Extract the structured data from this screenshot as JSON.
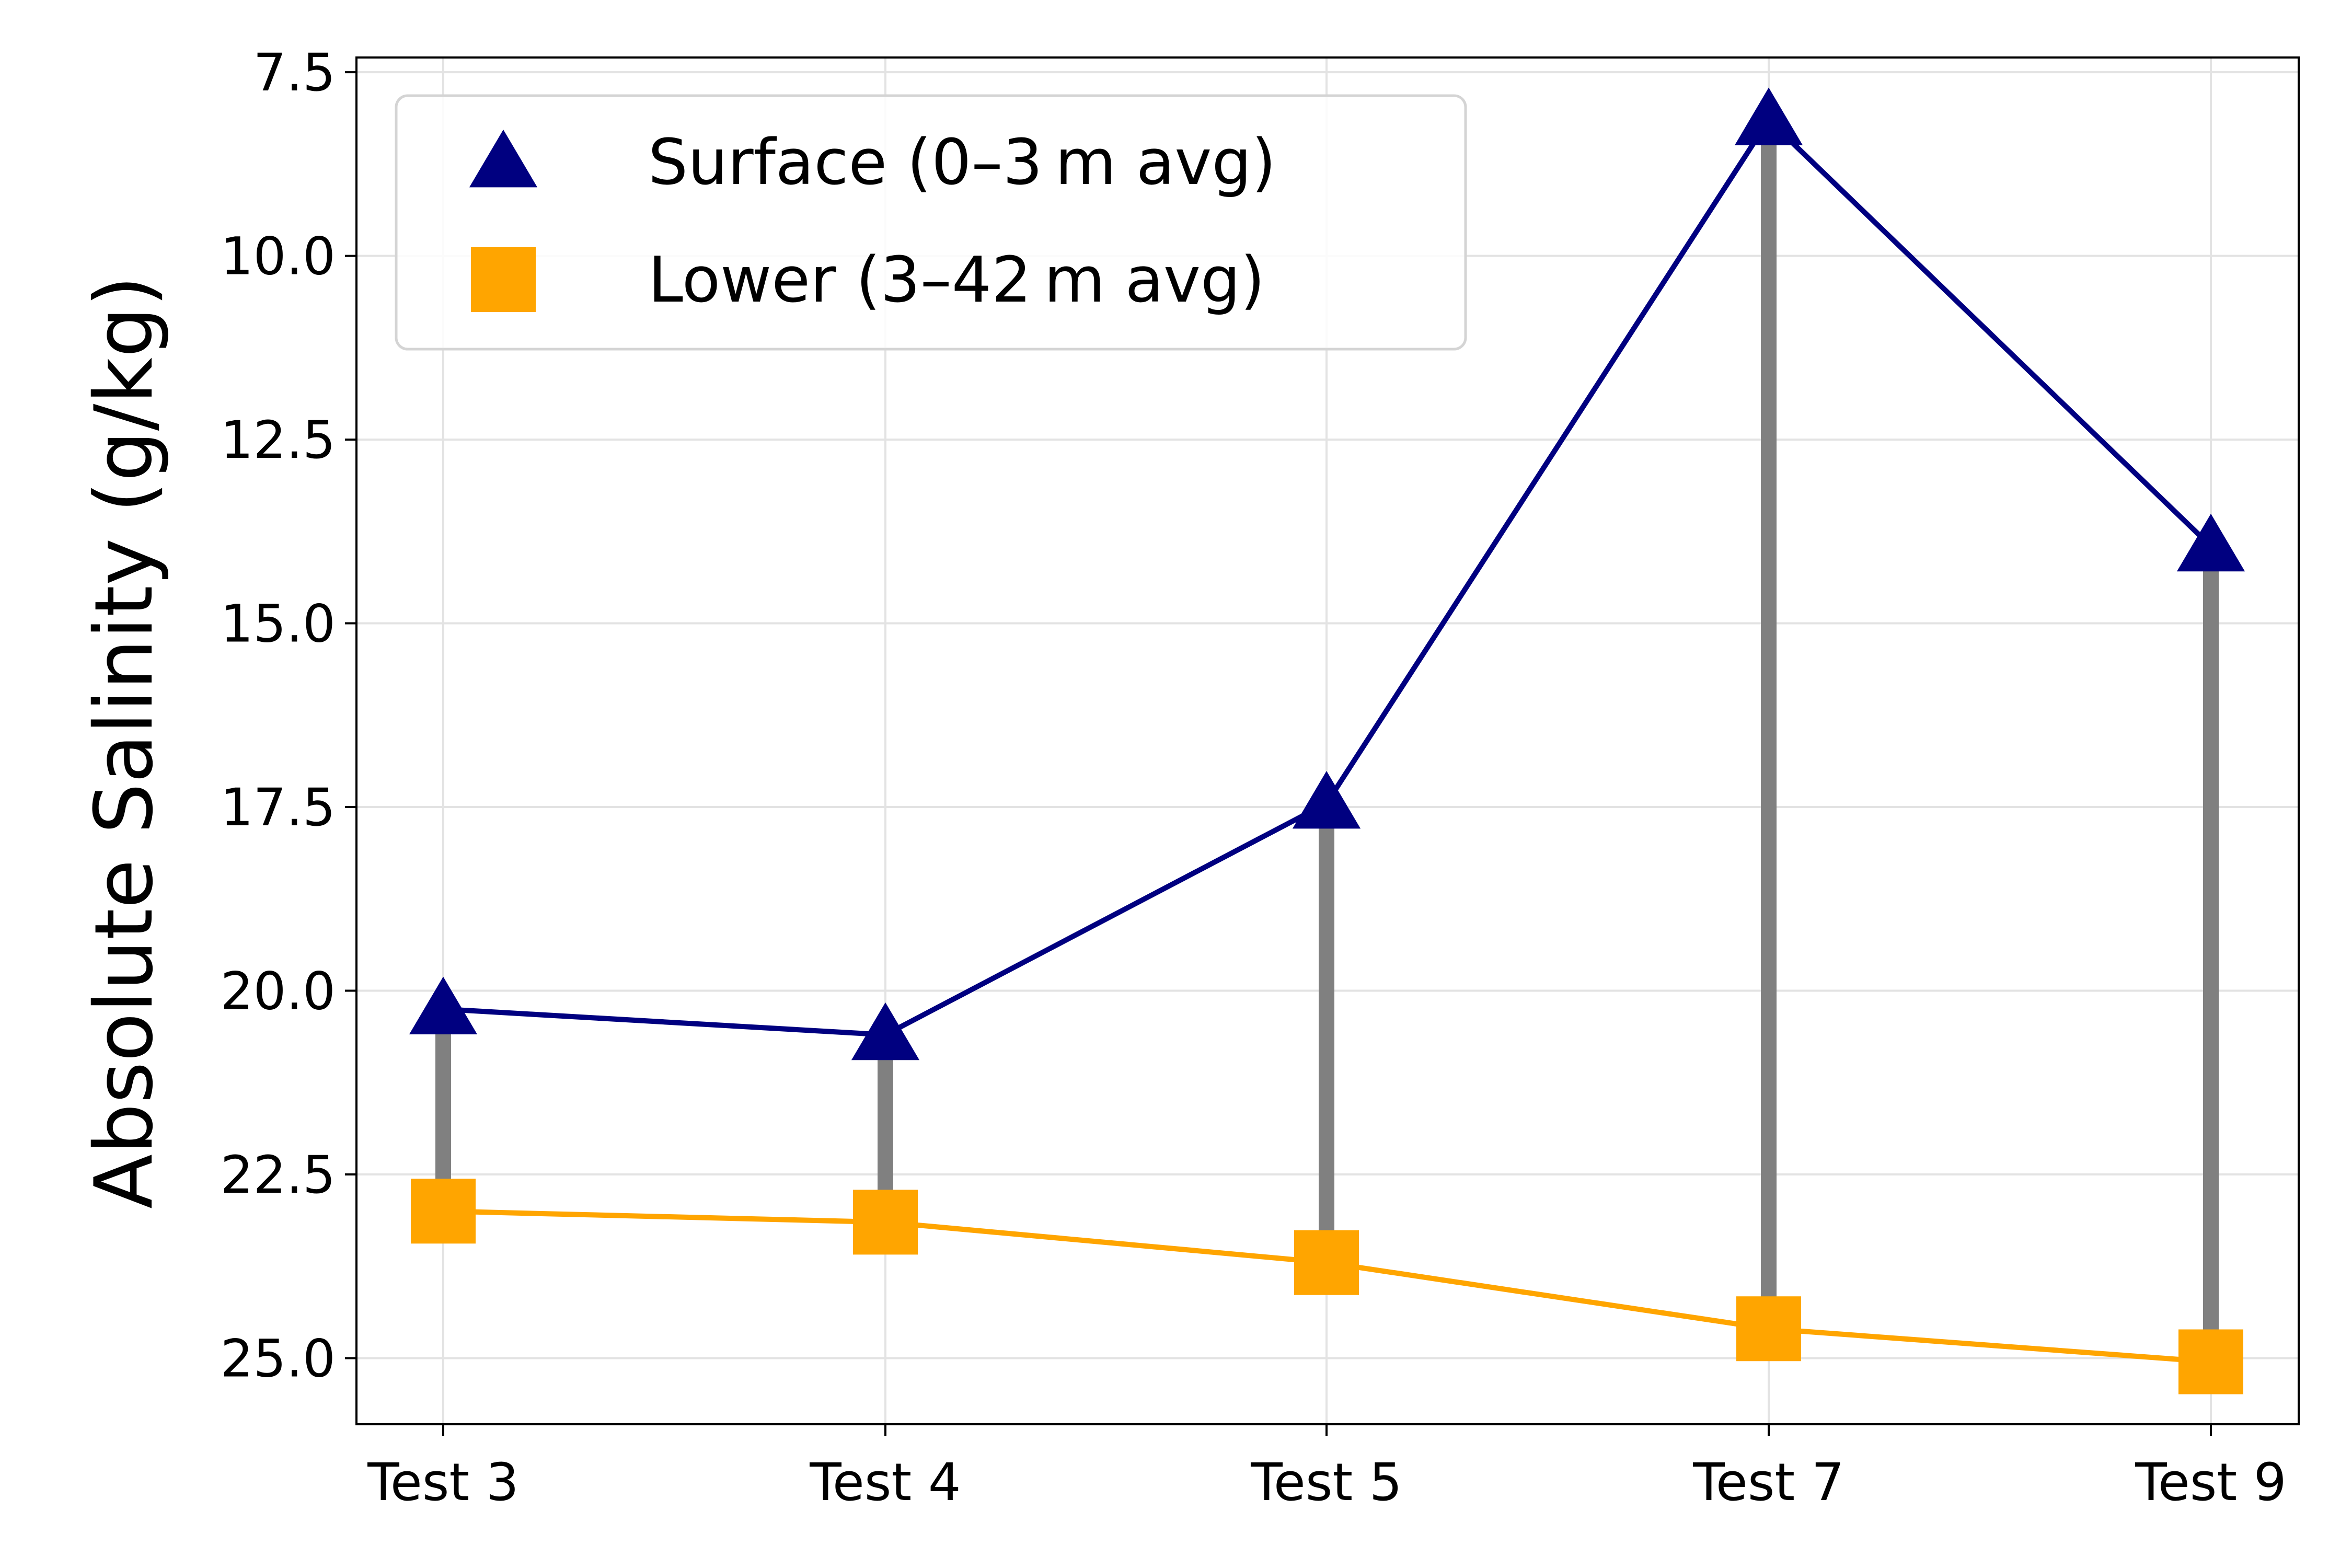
{
  "chart_data": {
    "type": "line",
    "title": "",
    "xlabel": "",
    "ylabel": "Absolute Salinity (g/kg)",
    "categories": [
      "Test 3",
      "Test 4",
      "Test 5",
      "Test 7",
      "Test 9"
    ],
    "y_axis_inverted": true,
    "ylim": [
      25.9,
      7.3
    ],
    "y_ticks": [
      7.5,
      10.0,
      12.5,
      15.0,
      17.5,
      20.0,
      22.5,
      25.0
    ],
    "y_tick_labels": [
      "7.5",
      "10.0",
      "12.5",
      "15.0",
      "17.5",
      "20.0",
      "22.5",
      "25.0"
    ],
    "grid": true,
    "legend_position": "upper-left",
    "series": [
      {
        "name": "Surface (0–3 m avg)",
        "marker": "triangle",
        "color": "#000080",
        "values": [
          20.25,
          20.6,
          17.45,
          8.15,
          13.95
        ]
      },
      {
        "name": "Lower (3–42 m avg)",
        "marker": "square",
        "color": "#FFA500",
        "values": [
          23.0,
          23.15,
          23.7,
          24.6,
          25.05
        ]
      }
    ],
    "connectors": {
      "style": "vertical",
      "color": "#808080",
      "between": "series"
    }
  }
}
